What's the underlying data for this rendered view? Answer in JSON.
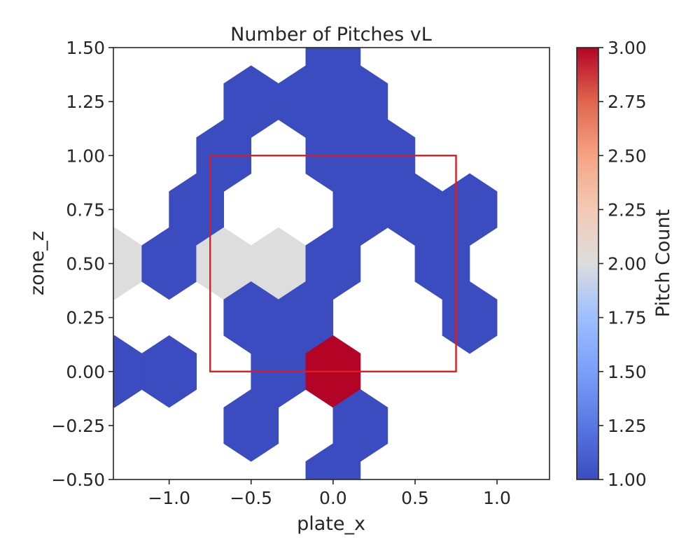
{
  "chart_data": {
    "type": "hexbin",
    "title": "Number of Pitches vL",
    "xlabel": "plate_x",
    "ylabel": "zone_z",
    "xlim": [
      -1.34,
      1.32
    ],
    "ylim": [
      -0.5,
      1.5
    ],
    "x_ticks": [
      -1.0,
      -0.5,
      0.0,
      0.5,
      1.0
    ],
    "x_tick_labels": [
      "−1.0",
      "−0.5",
      "0.0",
      "0.5",
      "1.0"
    ],
    "y_ticks": [
      -0.5,
      -0.25,
      0.0,
      0.25,
      0.5,
      0.75,
      1.0,
      1.25,
      1.5
    ],
    "y_tick_labels": [
      "−0.50",
      "−0.25",
      "0.00",
      "0.25",
      "0.50",
      "0.75",
      "1.00",
      "1.25",
      "1.50"
    ],
    "grid": false,
    "colormap": "coolwarm",
    "hex_radius_y": 0.1667,
    "hex_half_width_x": 0.1667,
    "bins": [
      {
        "x": 0.0,
        "y": 1.5,
        "count": 1
      },
      {
        "x": -0.5,
        "y": 1.25,
        "count": 1
      },
      {
        "x": -0.1667,
        "y": 1.25,
        "count": 1
      },
      {
        "x": 0.1667,
        "y": 1.25,
        "count": 1
      },
      {
        "x": -0.6667,
        "y": 1.0,
        "count": 1
      },
      {
        "x": 0.0,
        "y": 1.0,
        "count": 1
      },
      {
        "x": 0.3333,
        "y": 1.0,
        "count": 1
      },
      {
        "x": -0.8333,
        "y": 0.75,
        "count": 1
      },
      {
        "x": 0.1667,
        "y": 0.75,
        "count": 1
      },
      {
        "x": 0.5,
        "y": 0.75,
        "count": 1
      },
      {
        "x": 0.8333,
        "y": 0.75,
        "count": 1
      },
      {
        "x": -1.3333,
        "y": 0.5,
        "count": 2
      },
      {
        "x": -1.0,
        "y": 0.5,
        "count": 1
      },
      {
        "x": -0.6667,
        "y": 0.5,
        "count": 2
      },
      {
        "x": -0.3333,
        "y": 0.5,
        "count": 2
      },
      {
        "x": 0.0,
        "y": 0.5,
        "count": 1
      },
      {
        "x": 0.6667,
        "y": 0.5,
        "count": 1
      },
      {
        "x": -0.5,
        "y": 0.25,
        "count": 1
      },
      {
        "x": -0.1667,
        "y": 0.25,
        "count": 1
      },
      {
        "x": 0.8333,
        "y": 0.25,
        "count": 1
      },
      {
        "x": -1.3333,
        "y": 0.0,
        "count": 1
      },
      {
        "x": -1.0,
        "y": 0.0,
        "count": 1
      },
      {
        "x": -0.3333,
        "y": 0.0,
        "count": 1
      },
      {
        "x": 0.0,
        "y": 0.0,
        "count": 3
      },
      {
        "x": -0.5,
        "y": -0.25,
        "count": 1
      },
      {
        "x": 0.1667,
        "y": -0.25,
        "count": 1
      },
      {
        "x": 0.0,
        "y": -0.5,
        "count": 1
      }
    ],
    "strike_zone": {
      "x0": -0.75,
      "x1": 0.75,
      "y0": 0.0,
      "y1": 1.0,
      "color": "#e41a1c"
    },
    "colorbar": {
      "label": "Pitch Count",
      "min": 1.0,
      "max": 3.0,
      "ticks": [
        1.0,
        1.25,
        1.5,
        1.75,
        2.0,
        2.25,
        2.5,
        2.75,
        3.0
      ],
      "tick_labels": [
        "1.00",
        "1.25",
        "1.50",
        "1.75",
        "2.00",
        "2.25",
        "2.50",
        "2.75",
        "3.00"
      ],
      "colors": [
        "#3b4cc0",
        "#dddddd",
        "#b40426"
      ]
    }
  }
}
